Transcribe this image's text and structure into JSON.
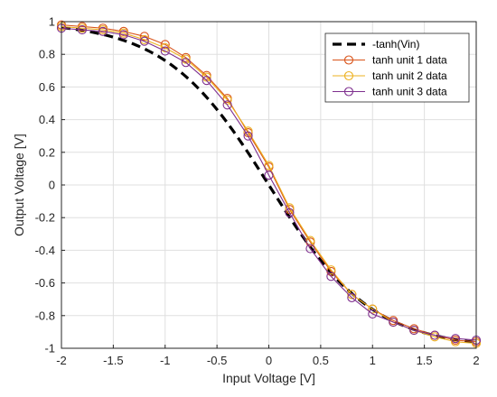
{
  "chart_data": {
    "type": "line",
    "title": "",
    "xlabel": "Input Voltage [V]",
    "ylabel": "Output Voltage [V]",
    "xlim": [
      -2,
      2
    ],
    "ylim": [
      -1,
      1
    ],
    "xticks": [
      -2,
      -1.5,
      -1,
      -0.5,
      0,
      0.5,
      1,
      1.5,
      2
    ],
    "yticks": [
      -1,
      -0.8,
      -0.6,
      -0.4,
      -0.2,
      0,
      0.2,
      0.4,
      0.6,
      0.8,
      1
    ],
    "xtick_labels": [
      "-2",
      "-1.5",
      "-1",
      "-0.5",
      "0",
      "0.5",
      "1",
      "1.5",
      "2"
    ],
    "ytick_labels": [
      "-1",
      "-0.8",
      "-0.6",
      "-0.4",
      "-0.2",
      "0",
      "0.2",
      "0.4",
      "0.6",
      "0.8",
      "1"
    ],
    "grid": true,
    "legend_position": "top-right",
    "x": [
      -2,
      -1.8,
      -1.6,
      -1.4,
      -1.2,
      -1,
      -0.8,
      -0.6,
      -0.4,
      -0.2,
      0,
      0.2,
      0.4,
      0.6,
      0.8,
      1,
      1.2,
      1.4,
      1.6,
      1.8,
      2
    ],
    "series": [
      {
        "name": "-tanh(Vin)",
        "style": "dashed",
        "marker": "none",
        "color": "#000000",
        "function": "neg-tanh"
      },
      {
        "name": "tanh unit 1 data",
        "style": "solid",
        "marker": "circle",
        "color": "#D95319",
        "values": [
          0.98,
          0.97,
          0.96,
          0.94,
          0.91,
          0.86,
          0.78,
          0.67,
          0.53,
          0.32,
          0.11,
          -0.15,
          -0.35,
          -0.53,
          -0.67,
          -0.76,
          -0.83,
          -0.88,
          -0.92,
          -0.95,
          -0.96
        ]
      },
      {
        "name": "tanh unit 2 data",
        "style": "solid",
        "marker": "circle",
        "color": "#EDB120",
        "values": [
          0.97,
          0.96,
          0.95,
          0.93,
          0.89,
          0.84,
          0.77,
          0.66,
          0.52,
          0.33,
          0.12,
          -0.14,
          -0.34,
          -0.52,
          -0.67,
          -0.76,
          -0.84,
          -0.89,
          -0.93,
          -0.96,
          -0.97
        ]
      },
      {
        "name": "tanh unit 3 data",
        "style": "solid",
        "marker": "circle",
        "color": "#7E2F8E",
        "values": [
          0.96,
          0.95,
          0.94,
          0.92,
          0.88,
          0.82,
          0.75,
          0.64,
          0.49,
          0.3,
          0.06,
          -0.17,
          -0.39,
          -0.56,
          -0.69,
          -0.79,
          -0.84,
          -0.89,
          -0.92,
          -0.94,
          -0.95
        ]
      }
    ]
  }
}
